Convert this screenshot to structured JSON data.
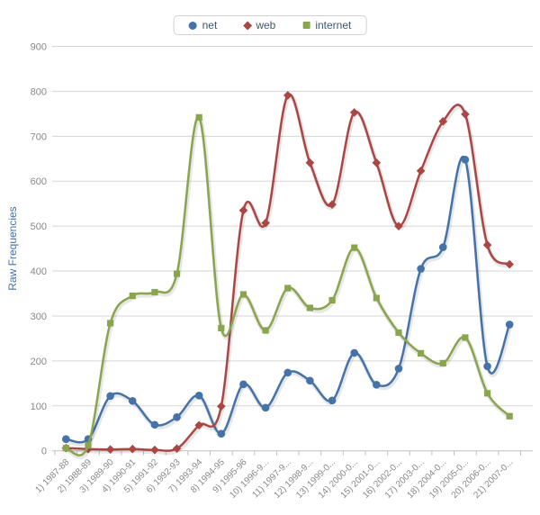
{
  "chart_data": {
    "type": "line",
    "subtype": "smoothed-spline-with-markers",
    "title": "",
    "xlabel": "",
    "ylabel": "Raw Frequencies",
    "ylim": [
      0,
      900
    ],
    "yticks": [
      0,
      100,
      200,
      300,
      400,
      500,
      600,
      700,
      800,
      900
    ],
    "grid": "horizontal",
    "legend_position": "top-center",
    "categories": [
      "1) 1987-88",
      "2) 1988-89",
      "3) 1989-90",
      "4) 1990-91",
      "5) 1991-92",
      "6) 1992-93",
      "7) 1993-94",
      "8) 1994-95",
      "9) 1995-96",
      "10) 1996-9...",
      "11) 1997-9...",
      "12) 1998-9...",
      "13) 1999-0...",
      "14) 2000-0...",
      "15) 2001-0...",
      "16) 2002-0...",
      "17) 2003-0...",
      "18) 2004-0...",
      "19) 2005-0...",
      "20) 2006-0...",
      "21) 2007-0..."
    ],
    "series": [
      {
        "name": "net",
        "color": "#4572A7",
        "marker": "circle",
        "values": [
          26,
          26,
          122,
          111,
          58,
          75,
          123,
          38,
          148,
          96,
          174,
          156,
          112,
          218,
          147,
          183,
          405,
          453,
          648,
          188,
          281
        ]
      },
      {
        "name": "web",
        "color": "#AA4643",
        "marker": "diamond",
        "values": [
          6,
          4,
          3,
          4,
          2,
          5,
          57,
          99,
          535,
          507,
          791,
          641,
          548,
          753,
          641,
          500,
          623,
          733,
          749,
          458,
          415
        ]
      },
      {
        "name": "internet",
        "color": "#89A54E",
        "marker": "square",
        "values": [
          6,
          12,
          284,
          345,
          353,
          394,
          742,
          273,
          348,
          268,
          362,
          318,
          335,
          452,
          340,
          263,
          217,
          195,
          252,
          128,
          77
        ]
      }
    ],
    "colors": {
      "gridline": "#d5d5d5",
      "axis_line": "#c0c0c0",
      "tick_label": "#888888",
      "legend_text": "#3E576F",
      "y_title": "#4572A7",
      "background": "#ffffff"
    }
  }
}
